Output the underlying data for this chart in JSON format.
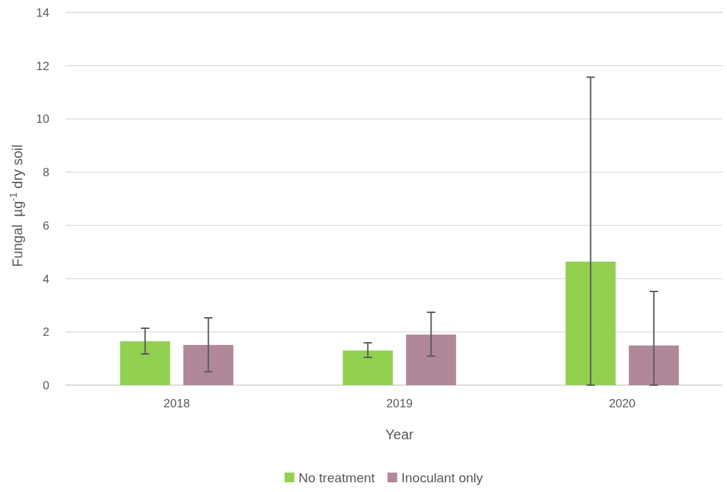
{
  "chart_data": {
    "type": "bar",
    "xlabel": "Year",
    "ylabel": "Fungal  µg$^{-1}$ dry soil",
    "categories": [
      "2018",
      "2019",
      "2020"
    ],
    "series": [
      {
        "name": "No treatment",
        "color": "#92d050",
        "values": [
          1.65,
          1.3,
          4.64
        ],
        "errors": [
          [
            1.17,
            2.14
          ],
          [
            1.04,
            1.59
          ],
          [
            0,
            11.57
          ]
        ]
      },
      {
        "name": "Inoculant only",
        "color": "#b08899",
        "values": [
          1.51,
          1.9,
          1.49
        ],
        "errors": [
          [
            0.5,
            2.53
          ],
          [
            1.09,
            2.74
          ],
          [
            0,
            3.52
          ]
        ]
      }
    ],
    "ylim": [
      0,
      14
    ],
    "yticks": [
      0,
      2,
      4,
      6,
      8,
      10,
      12,
      14
    ],
    "grid": "y",
    "legend": "bottom"
  }
}
